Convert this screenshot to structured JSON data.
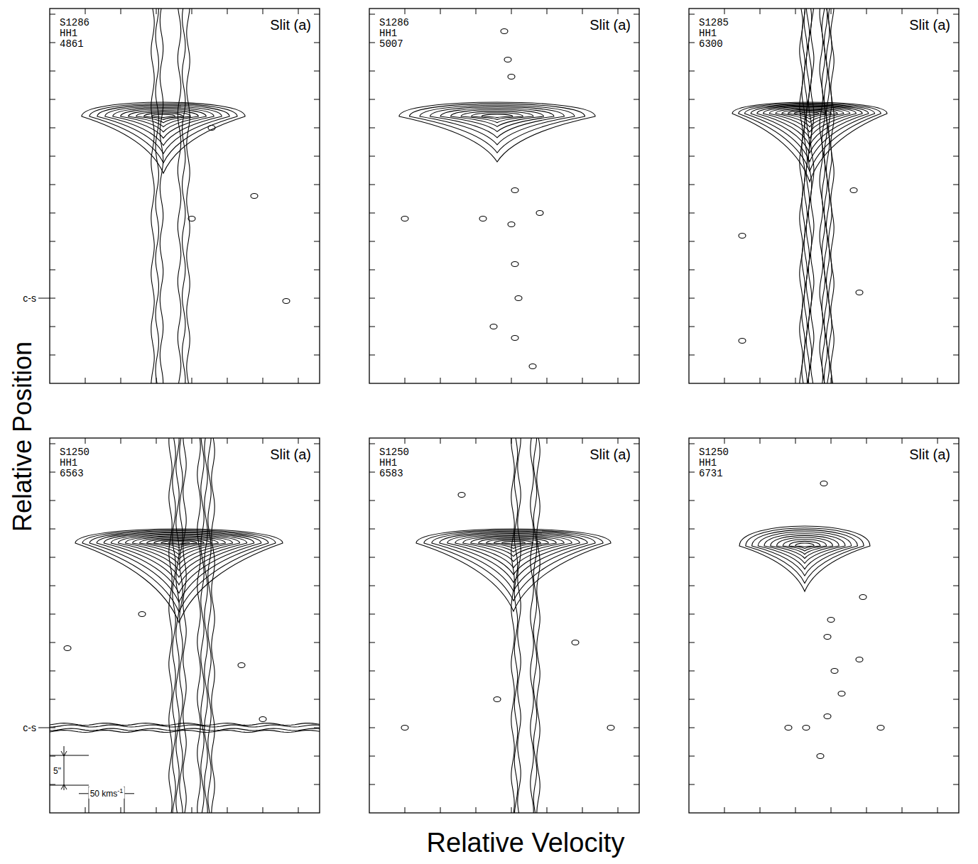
{
  "figure": {
    "xlabel": "Relative Velocity",
    "ylabel": "Relative Position"
  },
  "chart_data": [
    {
      "type": "contour",
      "plate": "S1286",
      "object": "HH1",
      "wavelength": "4861",
      "slit": "Slit (a)",
      "tick_labels": false,
      "xlim": [
        0,
        380
      ],
      "ylim": [
        0,
        66
      ],
      "xticks": [
        50,
        100,
        150,
        200,
        250,
        300,
        350
      ],
      "yticks": [
        5,
        10,
        15,
        20,
        25,
        30,
        35,
        40,
        45,
        50,
        55,
        60,
        65
      ],
      "marker_line": {
        "p": 15,
        "label": "c-s"
      },
      "bow": {
        "v": 160,
        "p": 47,
        "dv": 115,
        "dp_up": 2.5,
        "dp_down": 10,
        "levels": 10
      },
      "jet": {
        "v": 170,
        "dv": 25,
        "p_min": 0,
        "p_max": 66,
        "levels": 3
      },
      "knots": [
        {
          "v": 200,
          "p": 29
        },
        {
          "v": 228,
          "p": 45
        },
        {
          "v": 333,
          "p": 14.5
        },
        {
          "v": 288,
          "p": 33
        }
      ]
    },
    {
      "type": "contour",
      "plate": "S1286",
      "object": "HH1",
      "wavelength": "5007",
      "slit": "Slit (a)",
      "tick_labels": false,
      "xlim": [
        0,
        380
      ],
      "ylim": [
        0,
        66
      ],
      "xticks": [
        50,
        100,
        150,
        200,
        250,
        300,
        350
      ],
      "yticks": [
        5,
        10,
        15,
        20,
        25,
        30,
        35,
        40,
        45,
        50,
        55,
        60,
        65
      ],
      "bow": {
        "v": 180,
        "p": 47,
        "dv": 138,
        "dp_up": 2.5,
        "dp_down": 8,
        "levels": 9
      },
      "knots": [
        {
          "v": 190,
          "p": 62
        },
        {
          "v": 195,
          "p": 57
        },
        {
          "v": 200,
          "p": 54
        },
        {
          "v": 205,
          "p": 34
        },
        {
          "v": 200,
          "p": 28
        },
        {
          "v": 205,
          "p": 21
        },
        {
          "v": 210,
          "p": 15
        },
        {
          "v": 175,
          "p": 10
        },
        {
          "v": 205,
          "p": 8
        },
        {
          "v": 230,
          "p": 3
        },
        {
          "v": 160,
          "p": 29
        },
        {
          "v": 240,
          "p": 30
        },
        {
          "v": 50,
          "p": 29
        }
      ]
    },
    {
      "type": "contour",
      "plate": "S1285",
      "object": "HH1",
      "wavelength": "6300",
      "slit": "Slit (a)",
      "tick_labels": false,
      "xlim": [
        0,
        380
      ],
      "ylim": [
        0,
        66
      ],
      "xticks": [
        50,
        100,
        150,
        200,
        250,
        300,
        350
      ],
      "yticks": [
        5,
        10,
        15,
        20,
        25,
        30,
        35,
        40,
        45,
        50,
        55,
        60,
        65
      ],
      "bow": {
        "v": 170,
        "p": 47.5,
        "dv": 109,
        "dp_up": 2,
        "dp_down": 12,
        "levels": 12
      },
      "jet": {
        "v": 180,
        "dv": 22,
        "p_min": 0,
        "p_max": 66,
        "levels": 6
      },
      "knots": [
        {
          "v": 75,
          "p": 26
        },
        {
          "v": 240,
          "p": 16
        },
        {
          "v": 75,
          "p": 7.5
        },
        {
          "v": 232,
          "p": 34
        }
      ]
    },
    {
      "type": "contour",
      "plate": "S1250",
      "object": "HH1",
      "wavelength": "6563",
      "slit": "Slit (a)",
      "tick_labels": false,
      "xlim": [
        0,
        380
      ],
      "ylim": [
        0,
        66
      ],
      "xticks": [
        50,
        100,
        150,
        200,
        250,
        300,
        350
      ],
      "yticks": [
        5,
        10,
        15,
        20,
        25,
        30,
        35,
        40,
        45,
        50,
        55,
        60,
        65
      ],
      "marker_line": {
        "p": 15,
        "label": "c-s"
      },
      "continuum": {
        "p": 15,
        "levels": 2
      },
      "bow": {
        "v": 182,
        "p": 47.5,
        "dv": 146,
        "dp_up": 2.5,
        "dp_down": 14,
        "levels": 14
      },
      "jet": {
        "v": 200,
        "dv": 30,
        "p_min": 0,
        "p_max": 66,
        "levels": 5
      },
      "knots": [
        {
          "v": 25,
          "p": 29
        },
        {
          "v": 130,
          "p": 35
        },
        {
          "v": 270,
          "p": 26
        },
        {
          "v": 300,
          "p": 16.5
        }
      ],
      "scale_bar": {
        "position": 5,
        "position_label": "5\"",
        "velocity": 50,
        "velocity_label": "50 kms",
        "velocity_label_sup": "-1"
      }
    },
    {
      "type": "contour",
      "plate": "S1250",
      "object": "HH1",
      "wavelength": "6583",
      "slit": "Slit (a)",
      "tick_labels": false,
      "xlim": [
        0,
        380
      ],
      "ylim": [
        0,
        66
      ],
      "xticks": [
        50,
        100,
        150,
        200,
        250,
        300,
        350
      ],
      "yticks": [
        5,
        10,
        15,
        20,
        25,
        30,
        35,
        40,
        45,
        50,
        55,
        60,
        65
      ],
      "bow": {
        "v": 203,
        "p": 47.5,
        "dv": 137,
        "dp_up": 2.5,
        "dp_down": 12,
        "levels": 12
      },
      "jet": {
        "v": 220,
        "dv": 18,
        "p_min": 0,
        "p_max": 66,
        "levels": 3
      },
      "knots": [
        {
          "v": 50,
          "p": 15
        },
        {
          "v": 180,
          "p": 20
        },
        {
          "v": 340,
          "p": 15
        },
        {
          "v": 130,
          "p": 56
        },
        {
          "v": 290,
          "p": 30
        }
      ]
    },
    {
      "type": "contour",
      "plate": "S1250",
      "object": "HH1",
      "wavelength": "6731",
      "slit": "Slit (a)",
      "tick_labels": false,
      "xlim": [
        0,
        380
      ],
      "ylim": [
        0,
        66
      ],
      "xticks": [
        50,
        100,
        150,
        200,
        250,
        300,
        350
      ],
      "yticks": [
        5,
        10,
        15,
        20,
        25,
        30,
        35,
        40,
        45,
        50,
        55,
        60,
        65
      ],
      "bow": {
        "v": 163,
        "p": 47,
        "dv": 92,
        "dp_up": 3.5,
        "dp_down": 8,
        "levels": 10
      },
      "knots": [
        {
          "v": 190,
          "p": 58
        },
        {
          "v": 200,
          "p": 34
        },
        {
          "v": 195,
          "p": 31
        },
        {
          "v": 205,
          "p": 25
        },
        {
          "v": 215,
          "p": 21
        },
        {
          "v": 195,
          "p": 17
        },
        {
          "v": 185,
          "p": 10
        },
        {
          "v": 140,
          "p": 15
        },
        {
          "v": 165,
          "p": 15
        },
        {
          "v": 270,
          "p": 15
        },
        {
          "v": 240,
          "p": 27
        },
        {
          "v": 245,
          "p": 38
        }
      ]
    }
  ]
}
